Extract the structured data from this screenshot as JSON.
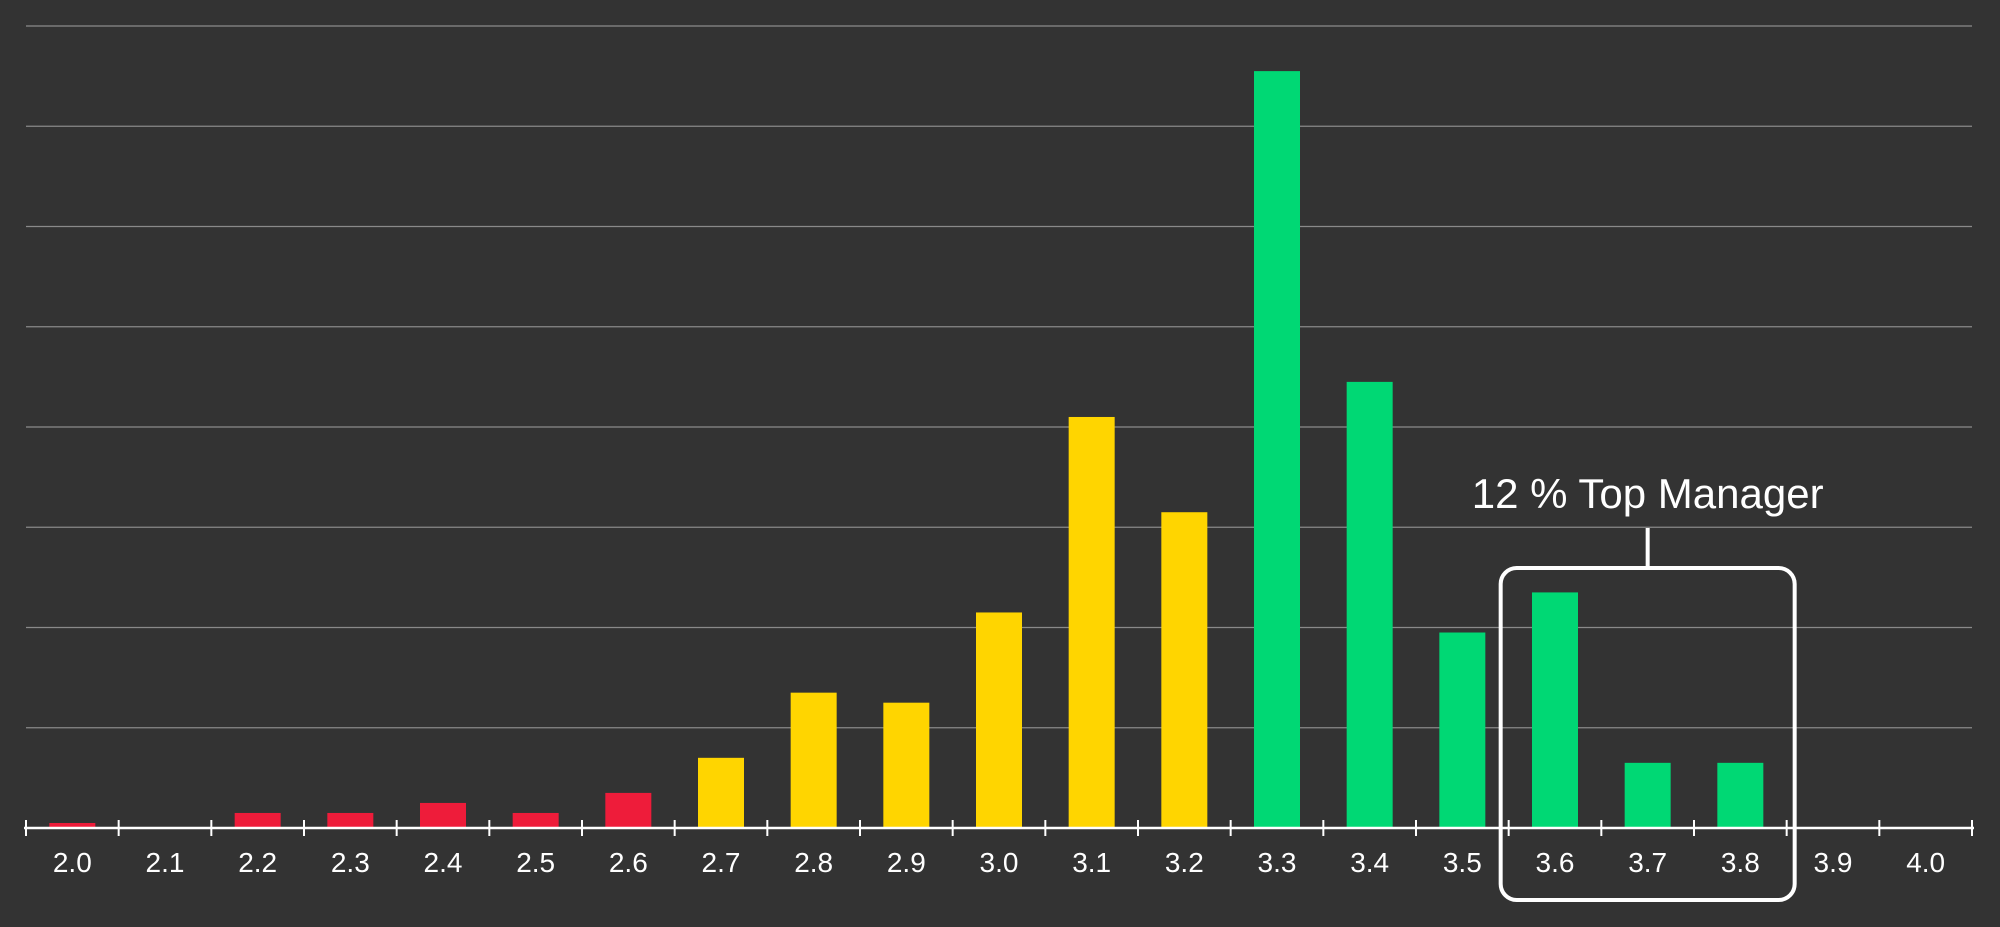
{
  "chart_data": {
    "type": "bar",
    "categories": [
      "2.0",
      "2.1",
      "2.2",
      "2.3",
      "2.4",
      "2.5",
      "2.6",
      "2.7",
      "2.8",
      "2.9",
      "3.0",
      "3.1",
      "3.2",
      "3.3",
      "3.4",
      "3.5",
      "3.6",
      "3.7",
      "3.8",
      "3.9",
      "4.0"
    ],
    "values": [
      0.5,
      0,
      1.5,
      1.5,
      2.5,
      1.5,
      3.5,
      7,
      13.5,
      12.5,
      21.5,
      41,
      31.5,
      75.5,
      44.5,
      19.5,
      23.5,
      6.5,
      6.5,
      0,
      0
    ],
    "bar_colors": [
      "#EE1C3A",
      "#EE1C3A",
      "#EE1C3A",
      "#EE1C3A",
      "#EE1C3A",
      "#EE1C3A",
      "#EE1C3A",
      "#FFD500",
      "#FFD500",
      "#FFD500",
      "#FFD500",
      "#FFD500",
      "#FFD500",
      "#00D874",
      "#00D874",
      "#00D874",
      "#00D874",
      "#00D874",
      "#00D874",
      "#00D874",
      "#00D874"
    ],
    "ylim": [
      0,
      80
    ],
    "gridlines": [
      0,
      10,
      20,
      30,
      40,
      50,
      60,
      70,
      80
    ],
    "grid": true,
    "y_tick_labels_shown": false,
    "annotation": {
      "text": "12 % Top Manager",
      "categories": [
        "3.6",
        "3.7",
        "3.8"
      ]
    },
    "colors": {
      "background": "#333333",
      "gridline": "#8A8A8A",
      "axis": "#FFFFFF",
      "text": "#FFFFFF"
    }
  }
}
